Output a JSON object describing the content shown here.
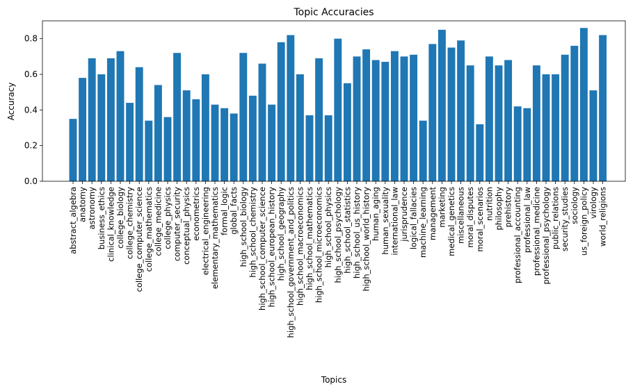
{
  "chart_data": {
    "type": "bar",
    "title": "Topic Accuracies",
    "xlabel": "Topics",
    "ylabel": "Accuracy",
    "ylim": [
      0,
      0.9
    ],
    "yticks": [
      "0.0",
      "0.2",
      "0.4",
      "0.6",
      "0.8"
    ],
    "bar_color": "#1f77b4",
    "grid": false,
    "categories": [
      "abstract_algebra",
      "anatomy",
      "astronomy",
      "business_ethics",
      "clinical_knowledge",
      "college_biology",
      "college_chemistry",
      "college_computer_science",
      "college_mathematics",
      "college_medicine",
      "college_physics",
      "computer_security",
      "conceptual_physics",
      "econometrics",
      "electrical_engineering",
      "elementary_mathematics",
      "formal_logic",
      "global_facts",
      "high_school_biology",
      "high_school_chemistry",
      "high_school_computer_science",
      "high_school_european_history",
      "high_school_geography",
      "high_school_government_and_politics",
      "high_school_macroeconomics",
      "high_school_mathematics",
      "high_school_microeconomics",
      "high_school_physics",
      "high_school_psychology",
      "high_school_statistics",
      "high_school_us_history",
      "high_school_world_history",
      "human_aging",
      "human_sexuality",
      "international_law",
      "jurisprudence",
      "logical_fallacies",
      "machine_learning",
      "management",
      "marketing",
      "medical_genetics",
      "miscellaneous",
      "moral_disputes",
      "moral_scenarios",
      "nutrition",
      "philosophy",
      "prehistory",
      "professional_accounting",
      "professional_law",
      "professional_medicine",
      "professional_psychology",
      "public_relations",
      "security_studies",
      "sociology",
      "us_foreign_policy",
      "virology",
      "world_religions"
    ],
    "values": [
      0.35,
      0.58,
      0.69,
      0.6,
      0.69,
      0.73,
      0.44,
      0.64,
      0.34,
      0.54,
      0.36,
      0.72,
      0.51,
      0.46,
      0.6,
      0.43,
      0.41,
      0.38,
      0.72,
      0.48,
      0.66,
      0.43,
      0.78,
      0.82,
      0.6,
      0.37,
      0.69,
      0.37,
      0.8,
      0.55,
      0.7,
      0.74,
      0.68,
      0.67,
      0.73,
      0.7,
      0.71,
      0.34,
      0.77,
      0.85,
      0.75,
      0.79,
      0.65,
      0.32,
      0.7,
      0.65,
      0.68,
      0.42,
      0.41,
      0.65,
      0.6,
      0.6,
      0.71,
      0.76,
      0.86,
      0.51,
      0.82
    ]
  }
}
